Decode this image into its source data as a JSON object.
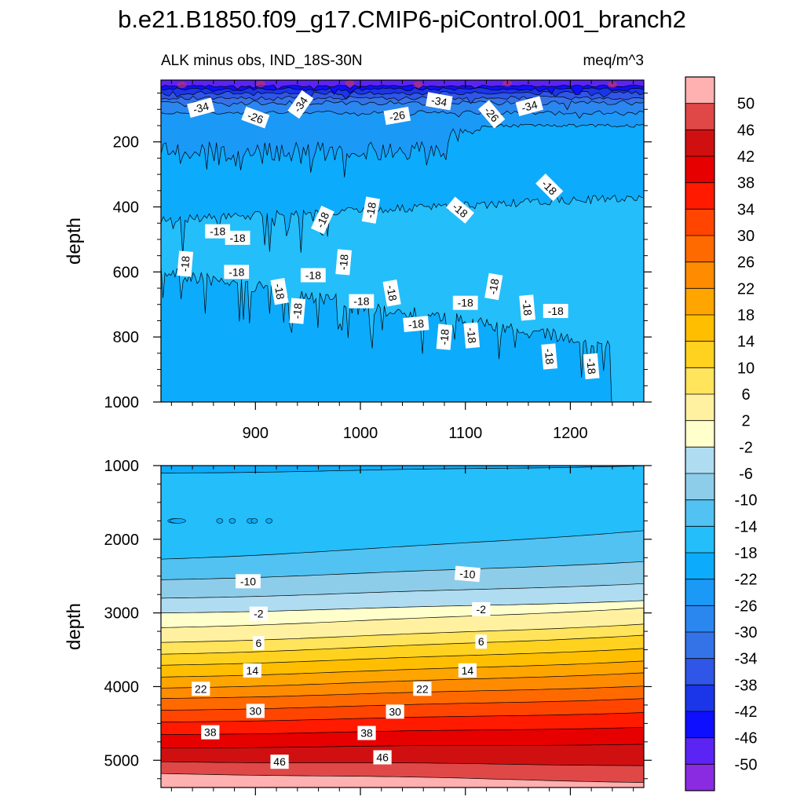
{
  "figure": {
    "title": "b.e21.B1850.f09_g17.CMIP6-piControl.001_branch2",
    "subtitle_left": "ALK minus obs, IND_18S-30N",
    "subtitle_right": "meq/m^3"
  },
  "colors": {
    "level_fills": [
      "#8a2be2",
      "#5c23f5",
      "#0f0fff",
      "#1a36e8",
      "#2f56e6",
      "#3472e8",
      "#2a87ef",
      "#1b99f7",
      "#0dabfc",
      "#24befa",
      "#52c2f2",
      "#8ecde9",
      "#afdcf1",
      "#ffffcc",
      "#fff1a0",
      "#ffe45c",
      "#ffd21f",
      "#ffbf00",
      "#ffa500",
      "#ff8c00",
      "#ff6a00",
      "#ff4500",
      "#ff1a00",
      "#e60000",
      "#d01010",
      "#e04848",
      "#ffb0b0"
    ],
    "axis": "#000000",
    "contour_line": "#000000"
  },
  "chart_data": [
    {
      "type": "contour",
      "name": "upper-panel",
      "xlabel": "",
      "ylabel": "depth",
      "xlim": [
        810,
        1270
      ],
      "ylim": [
        1000,
        10
      ],
      "xticks": [
        900,
        1000,
        1100,
        1200
      ],
      "yticks": [
        200,
        400,
        600,
        800,
        1000
      ],
      "layers": [
        {
          "top": 10,
          "fill_index": 4,
          "contour_depths": [
            30,
            50,
            60,
            75,
            90
          ]
        },
        {
          "top": 95,
          "fill_index": 5,
          "contour_depths": []
        },
        {
          "top": 150,
          "fill_index": 7,
          "contour_depths": [
            150
          ]
        },
        {
          "top": 420,
          "fill_index": 9,
          "contour_depths": [
            420
          ]
        },
        {
          "top": 660,
          "fill_index": 8,
          "contour_depths": [
            660
          ]
        }
      ],
      "contour_labels": [
        {
          "x": 848,
          "depth": 95,
          "text": "-34",
          "rot": -15
        },
        {
          "x": 900,
          "depth": 125,
          "text": "-26",
          "rot": 20
        },
        {
          "x": 943,
          "depth": 85,
          "text": "-34",
          "rot": -55
        },
        {
          "x": 1035,
          "depth": 120,
          "text": "-26",
          "rot": -10
        },
        {
          "x": 1075,
          "depth": 75,
          "text": "-34",
          "rot": 10
        },
        {
          "x": 1125,
          "depth": 115,
          "text": "-26",
          "rot": 50
        },
        {
          "x": 1161,
          "depth": 90,
          "text": "-34",
          "rot": -15
        },
        {
          "x": 864,
          "depth": 475,
          "text": "-18",
          "rot": 0
        },
        {
          "x": 883,
          "depth": 495,
          "text": "-18",
          "rot": 0
        },
        {
          "x": 964,
          "depth": 440,
          "text": "-18",
          "rot": -65
        },
        {
          "x": 1010,
          "depth": 410,
          "text": "-18",
          "rot": -80
        },
        {
          "x": 1095,
          "depth": 410,
          "text": "-18",
          "rot": 40
        },
        {
          "x": 1180,
          "depth": 340,
          "text": "-18",
          "rot": 45
        },
        {
          "x": 833,
          "depth": 575,
          "text": "-18",
          "rot": -85
        },
        {
          "x": 882,
          "depth": 600,
          "text": "-18",
          "rot": 0
        },
        {
          "x": 923,
          "depth": 660,
          "text": "-18",
          "rot": 80
        },
        {
          "x": 955,
          "depth": 610,
          "text": "-18",
          "rot": 0
        },
        {
          "x": 984,
          "depth": 570,
          "text": "-18",
          "rot": -85
        },
        {
          "x": 1001,
          "depth": 690,
          "text": "-18",
          "rot": 0
        },
        {
          "x": 1030,
          "depth": 665,
          "text": "-18",
          "rot": 80
        },
        {
          "x": 940,
          "depth": 720,
          "text": "-18",
          "rot": -85
        },
        {
          "x": 1053,
          "depth": 760,
          "text": "-18",
          "rot": -5
        },
        {
          "x": 1080,
          "depth": 800,
          "text": "-18",
          "rot": -85
        },
        {
          "x": 1100,
          "depth": 695,
          "text": "-18",
          "rot": 0
        },
        {
          "x": 1106,
          "depth": 795,
          "text": "-18",
          "rot": 85
        },
        {
          "x": 1127,
          "depth": 645,
          "text": "-18",
          "rot": -80
        },
        {
          "x": 1159,
          "depth": 710,
          "text": "-18",
          "rot": 85
        },
        {
          "x": 1186,
          "depth": 720,
          "text": "-18",
          "rot": 0
        },
        {
          "x": 1180,
          "depth": 860,
          "text": "-18",
          "rot": 85
        },
        {
          "x": 1220,
          "depth": 890,
          "text": "-18",
          "rot": 85
        }
      ]
    },
    {
      "type": "contour",
      "name": "lower-panel",
      "xlabel": "",
      "ylabel": "depth",
      "xlim": [
        810,
        1270
      ],
      "ylim": [
        5370,
        1000
      ],
      "xticks": [
        900,
        1000,
        1100,
        1200
      ],
      "yticks": [
        1000,
        2000,
        3000,
        4000,
        5000
      ],
      "boundaries": [
        {
          "level": -18,
          "depth_left": 1100,
          "depth_right": 1000
        },
        {
          "level": -14,
          "depth_left": 2270,
          "depth_right": 1880
        },
        {
          "level": -10,
          "depth_left": 2550,
          "depth_right": 2300
        },
        {
          "level": -6,
          "depth_left": 2800,
          "depth_right": 2600
        },
        {
          "level": -2,
          "depth_left": 3000,
          "depth_right": 2830
        },
        {
          "level": 2,
          "depth_left": 3200,
          "depth_right": 2930
        },
        {
          "level": 6,
          "depth_left": 3400,
          "depth_right": 3150
        },
        {
          "level": 10,
          "depth_left": 3560,
          "depth_right": 3300
        },
        {
          "level": 14,
          "depth_left": 3710,
          "depth_right": 3480
        },
        {
          "level": 18,
          "depth_left": 3870,
          "depth_right": 3650
        },
        {
          "level": 22,
          "depth_left": 4020,
          "depth_right": 3810
        },
        {
          "level": 26,
          "depth_left": 4160,
          "depth_right": 3990
        },
        {
          "level": 30,
          "depth_left": 4320,
          "depth_right": 4160
        },
        {
          "level": 34,
          "depth_left": 4480,
          "depth_right": 4350
        },
        {
          "level": 38,
          "depth_left": 4650,
          "depth_right": 4550
        },
        {
          "level": 42,
          "depth_left": 4830,
          "depth_right": 4780
        },
        {
          "level": 46,
          "depth_left": 5020,
          "depth_right": 5070
        },
        {
          "level": 50,
          "depth_left": 5180,
          "depth_right": 5300
        }
      ],
      "contour_labels": [
        {
          "x": 893,
          "depth": 2570,
          "text": "-10",
          "rot": 0
        },
        {
          "x": 1102,
          "depth": 2470,
          "text": "-10",
          "rot": 5
        },
        {
          "x": 903,
          "depth": 3010,
          "text": "-2",
          "rot": 0
        },
        {
          "x": 1115,
          "depth": 2950,
          "text": "-2",
          "rot": 0
        },
        {
          "x": 903,
          "depth": 3410,
          "text": "6",
          "rot": 0
        },
        {
          "x": 1115,
          "depth": 3390,
          "text": "6",
          "rot": 0
        },
        {
          "x": 897,
          "depth": 3780,
          "text": "14",
          "rot": 0
        },
        {
          "x": 1102,
          "depth": 3780,
          "text": "14",
          "rot": 0
        },
        {
          "x": 848,
          "depth": 4030,
          "text": "22",
          "rot": 0
        },
        {
          "x": 1059,
          "depth": 4030,
          "text": "22",
          "rot": 0
        },
        {
          "x": 900,
          "depth": 4330,
          "text": "30",
          "rot": 0
        },
        {
          "x": 1033,
          "depth": 4340,
          "text": "30",
          "rot": 0
        },
        {
          "x": 857,
          "depth": 4620,
          "text": "38",
          "rot": 0
        },
        {
          "x": 1006,
          "depth": 4630,
          "text": "38",
          "rot": 0
        },
        {
          "x": 1021,
          "depth": 4960,
          "text": "46",
          "rot": 0
        },
        {
          "x": 923,
          "depth": 5020,
          "text": "46",
          "rot": 0
        }
      ]
    },
    {
      "type": "colorbar",
      "name": "colorbar",
      "labels": [
        "50",
        "46",
        "42",
        "38",
        "34",
        "30",
        "26",
        "22",
        "18",
        "14",
        "10",
        "6",
        "2",
        "-2",
        "-6",
        "-10",
        "-14",
        "-18",
        "-22",
        "-26",
        "-30",
        "-34",
        "-38",
        "-42",
        "-46",
        "-50"
      ]
    }
  ]
}
